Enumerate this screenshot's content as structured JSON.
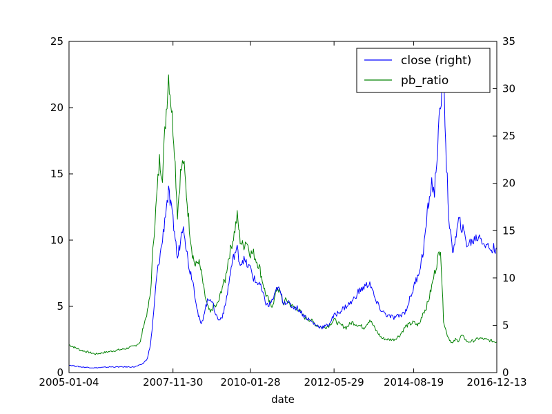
{
  "chart_data": {
    "type": "line",
    "xlabel": "date",
    "x_tick_labels": [
      "2005-01-04",
      "2007-11-30",
      "2010-01-28",
      "2012-05-29",
      "2014-08-19",
      "2016-12-13"
    ],
    "x_range": [
      "2005-01-04",
      "2016-12-13"
    ],
    "y_left": {
      "ylim": [
        0,
        25
      ],
      "ticks": [
        "0",
        "5",
        "10",
        "15",
        "20",
        "25"
      ]
    },
    "y_right": {
      "ylim": [
        0,
        35
      ],
      "ticks": [
        "0",
        "5",
        "10",
        "15",
        "20",
        "25",
        "30",
        "35"
      ]
    },
    "legend": {
      "placement": "top-right",
      "entries": [
        "close (right)",
        "pb_ratio"
      ]
    },
    "grid": false,
    "series": [
      {
        "name": "pb_ratio",
        "axis": "left",
        "color": "#008000",
        "x": [
          "2005-01-04",
          "2005-05-01",
          "2005-10-01",
          "2006-03-01",
          "2006-08-01",
          "2006-11-01",
          "2007-01-01",
          "2007-02-01",
          "2007-03-15",
          "2007-04-15",
          "2007-05-15",
          "2007-06-15",
          "2007-07-15",
          "2007-08-15",
          "2007-09-15",
          "2007-10-16",
          "2007-11-15",
          "2007-12-15",
          "2008-01-15",
          "2008-02-15",
          "2008-03-15",
          "2008-04-15",
          "2008-05-15",
          "2008-06-15",
          "2008-07-15",
          "2008-08-15",
          "2008-09-15",
          "2008-10-15",
          "2008-11-15",
          "2008-12-15",
          "2009-01-15",
          "2009-02-15",
          "2009-03-15",
          "2009-04-15",
          "2009-05-15",
          "2009-06-15",
          "2009-07-15",
          "2009-08-15",
          "2009-09-15",
          "2009-10-15",
          "2009-11-15",
          "2009-12-15",
          "2010-01-28",
          "2010-02-28",
          "2010-03-28",
          "2010-04-28",
          "2010-05-28",
          "2010-06-28",
          "2010-07-28",
          "2010-08-28",
          "2010-09-28",
          "2010-10-28",
          "2010-11-28",
          "2010-12-28",
          "2011-01-28",
          "2011-03-28",
          "2011-05-28",
          "2011-07-28",
          "2011-09-28",
          "2011-11-28",
          "2012-01-28",
          "2012-03-28",
          "2012-05-29",
          "2012-07-29",
          "2012-09-29",
          "2012-11-29",
          "2013-01-29",
          "2013-03-29",
          "2013-05-29",
          "2013-07-29",
          "2013-09-29",
          "2013-11-29",
          "2014-01-29",
          "2014-03-29",
          "2014-05-29",
          "2014-08-19",
          "2014-09-19",
          "2014-10-19",
          "2014-11-19",
          "2014-12-19",
          "2015-01-19",
          "2015-02-19",
          "2015-03-19",
          "2015-04-19",
          "2015-05-19",
          "2015-06-19",
          "2015-07-19",
          "2015-08-19",
          "2015-09-19",
          "2015-10-19",
          "2015-11-19",
          "2015-12-19",
          "2016-01-19",
          "2016-02-19",
          "2016-04-19",
          "2016-06-19",
          "2016-08-19",
          "2016-10-19",
          "2016-12-13"
        ],
        "values": [
          2.1,
          1.7,
          1.4,
          1.6,
          1.8,
          2.0,
          2.3,
          3.5,
          4.6,
          6.0,
          10.0,
          13.0,
          16.0,
          15.0,
          19.0,
          22.5,
          20.0,
          17.0,
          12.0,
          15.0,
          16.0,
          13.5,
          11.0,
          9.0,
          8.0,
          8.5,
          7.5,
          6.0,
          5.0,
          4.5,
          5.0,
          5.0,
          5.5,
          6.5,
          7.0,
          8.5,
          9.5,
          10.5,
          11.8,
          10.0,
          9.5,
          10.0,
          9.0,
          9.0,
          8.5,
          8.0,
          7.0,
          6.0,
          5.5,
          5.0,
          5.5,
          6.5,
          6.0,
          5.2,
          5.5,
          5.0,
          4.8,
          4.2,
          4.0,
          3.6,
          3.4,
          3.5,
          4.0,
          3.6,
          3.4,
          3.8,
          3.6,
          3.4,
          4.0,
          3.2,
          2.6,
          2.5,
          2.5,
          2.8,
          3.5,
          3.8,
          3.6,
          3.7,
          4.5,
          4.8,
          5.5,
          6.5,
          7.5,
          8.5,
          9.5,
          4.0,
          3.0,
          2.5,
          2.2,
          2.5,
          2.4,
          2.8,
          2.6,
          2.3,
          2.4,
          2.6,
          2.5,
          2.4,
          2.3
        ]
      },
      {
        "name": "close (right)",
        "axis": "right",
        "color": "#0000ff",
        "x": [
          "2005-01-04",
          "2005-05-01",
          "2005-10-01",
          "2006-03-01",
          "2006-08-01",
          "2006-11-01",
          "2007-01-01",
          "2007-02-01",
          "2007-03-15",
          "2007-04-15",
          "2007-05-15",
          "2007-06-15",
          "2007-07-15",
          "2007-08-15",
          "2007-09-15",
          "2007-10-16",
          "2007-11-15",
          "2007-12-15",
          "2008-01-15",
          "2008-02-15",
          "2008-03-15",
          "2008-04-15",
          "2008-05-15",
          "2008-06-15",
          "2008-07-15",
          "2008-08-15",
          "2008-09-15",
          "2008-10-15",
          "2008-11-15",
          "2008-12-15",
          "2009-01-15",
          "2009-02-15",
          "2009-03-15",
          "2009-04-15",
          "2009-05-15",
          "2009-06-15",
          "2009-07-15",
          "2009-08-15",
          "2009-09-15",
          "2009-10-15",
          "2009-11-15",
          "2009-12-15",
          "2010-01-28",
          "2010-02-28",
          "2010-03-28",
          "2010-04-28",
          "2010-05-28",
          "2010-06-28",
          "2010-07-28",
          "2010-08-28",
          "2010-09-28",
          "2010-10-28",
          "2010-11-28",
          "2010-12-28",
          "2011-01-28",
          "2011-03-28",
          "2011-05-28",
          "2011-07-28",
          "2011-09-28",
          "2011-11-28",
          "2012-01-28",
          "2012-03-28",
          "2012-05-29",
          "2012-07-29",
          "2012-09-29",
          "2012-11-29",
          "2013-01-29",
          "2013-03-29",
          "2013-05-29",
          "2013-07-29",
          "2013-09-29",
          "2013-11-29",
          "2014-01-29",
          "2014-03-29",
          "2014-05-29",
          "2014-08-19",
          "2014-09-19",
          "2014-10-19",
          "2014-11-19",
          "2014-12-19",
          "2015-01-19",
          "2015-02-19",
          "2015-03-19",
          "2015-04-19",
          "2015-05-19",
          "2015-06-19",
          "2015-07-19",
          "2015-08-19",
          "2015-09-19",
          "2015-10-19",
          "2015-11-19",
          "2015-12-19",
          "2016-01-19",
          "2016-02-19",
          "2016-04-19",
          "2016-06-19",
          "2016-08-19",
          "2016-10-19",
          "2016-12-13"
        ],
        "values": [
          0.8,
          0.6,
          0.5,
          0.6,
          0.6,
          0.6,
          0.8,
          1.0,
          1.5,
          3.0,
          6.0,
          10.0,
          12.0,
          14.0,
          17.0,
          19.0,
          17.0,
          15.0,
          12.0,
          14.0,
          16.0,
          13.0,
          11.0,
          10.0,
          8.0,
          6.0,
          5.0,
          6.5,
          7.5,
          8.0,
          7.0,
          6.0,
          5.5,
          6.0,
          7.0,
          9.0,
          11.0,
          12.5,
          13.0,
          11.5,
          12.0,
          11.5,
          11.0,
          10.0,
          9.5,
          9.5,
          8.5,
          7.5,
          7.0,
          7.5,
          8.0,
          9.0,
          8.5,
          7.5,
          7.5,
          7.0,
          6.8,
          6.0,
          5.5,
          5.0,
          4.8,
          5.0,
          6.0,
          6.5,
          7.0,
          7.5,
          8.5,
          9.0,
          9.5,
          7.5,
          6.5,
          6.0,
          5.8,
          6.0,
          6.5,
          9.0,
          10.0,
          11.0,
          12.5,
          15.0,
          18.0,
          20.0,
          19.0,
          24.0,
          28.0,
          32.0,
          22.0,
          15.0,
          13.0,
          14.0,
          16.0,
          15.5,
          14.5,
          13.5,
          14.0,
          14.5,
          13.5,
          13.0,
          13.2
        ]
      }
    ]
  }
}
